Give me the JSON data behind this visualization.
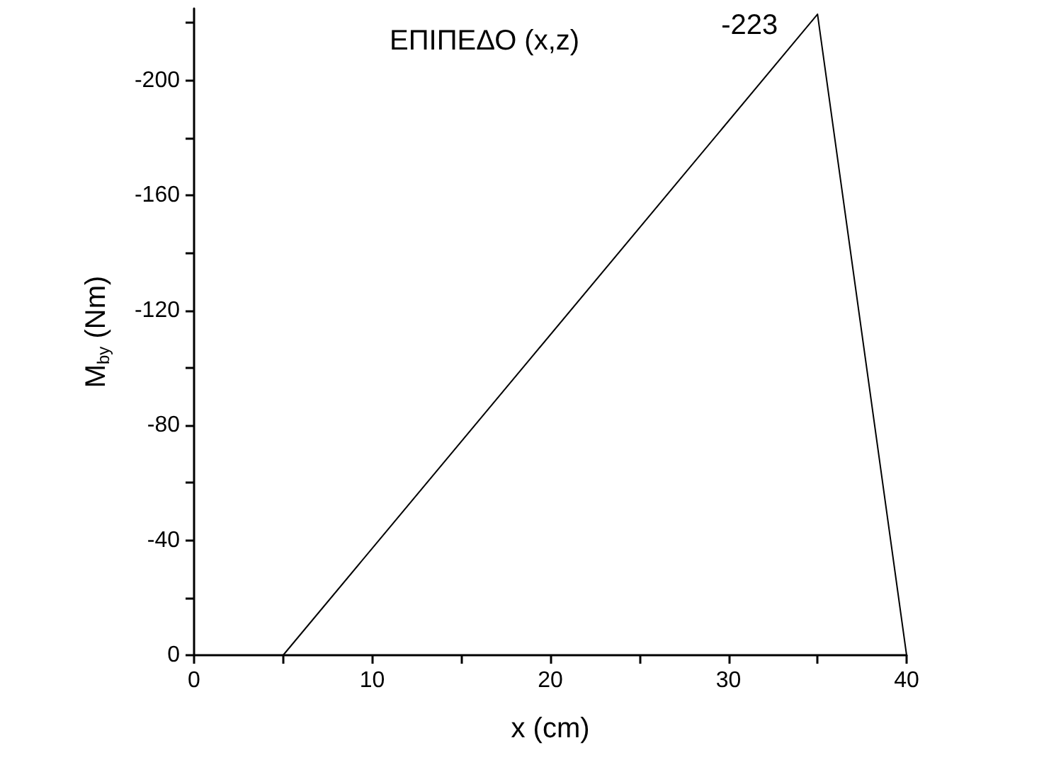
{
  "chart_data": {
    "type": "line",
    "title": "ΕΠΙΠΕΔΟ (x,z)",
    "xlabel": "x (cm)",
    "ylabel": "M$_{by}$ (Nm)",
    "x": [
      5,
      35,
      40
    ],
    "series": [
      {
        "color": "#000000",
        "values": [
          0,
          -223,
          0
        ],
        "value_labels": [
          null,
          "-223",
          null
        ]
      }
    ],
    "xlim": [
      0,
      40
    ],
    "xticks": [
      0,
      {
        "value": 5,
        "label": null
      },
      10,
      {
        "value": 15,
        "label": null
      },
      20,
      {
        "value": 25,
        "label": null
      },
      30,
      {
        "value": 35,
        "label": null
      },
      40
    ],
    "ylim": [
      0,
      -225
    ],
    "yticks": [
      0,
      {
        "value": -20,
        "label": null
      },
      -40,
      {
        "value": -60,
        "label": null
      },
      -80,
      {
        "value": -100,
        "label": null
      },
      -120,
      {
        "value": -140,
        "label": null
      },
      -160,
      {
        "value": -180,
        "label": null
      },
      -200,
      {
        "value": -220,
        "label": null
      }
    ],
    "grid": false,
    "marker": "none",
    "line_style": "solid"
  }
}
